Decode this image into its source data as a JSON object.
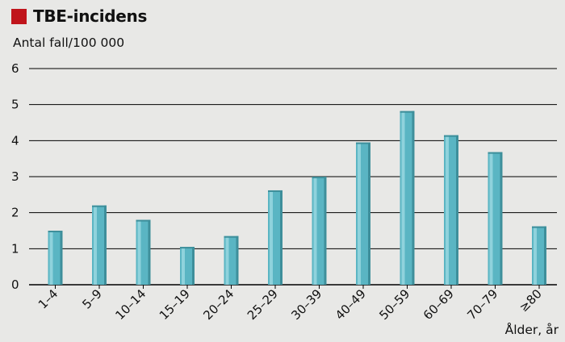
{
  "chart_data": {
    "type": "bar",
    "title": "TBE-incidens",
    "ylabel": "Antal fall/100 000",
    "xlabel": "Ålder, år",
    "categories": [
      "1–4",
      "5–9",
      "10–14",
      "15–19",
      "20–24",
      "25–29",
      "30–39",
      "40–49",
      "50–59",
      "60–69",
      "70–79",
      "≥80"
    ],
    "values": [
      1.5,
      2.2,
      1.8,
      1.05,
      1.35,
      2.62,
      3.0,
      3.95,
      4.82,
      4.15,
      3.68,
      1.62
    ],
    "ylim": [
      0,
      6
    ],
    "yticks": [
      0,
      1,
      2,
      3,
      4,
      5,
      6
    ],
    "grid": true,
    "colors": {
      "title_swatch": "#c0141b",
      "bar": "#5ab5c3",
      "bar_highlight": "#8fd2dc",
      "bar_shadow": "#3e8f9b",
      "grid": "#000000",
      "background": "#e8e8e6"
    }
  }
}
